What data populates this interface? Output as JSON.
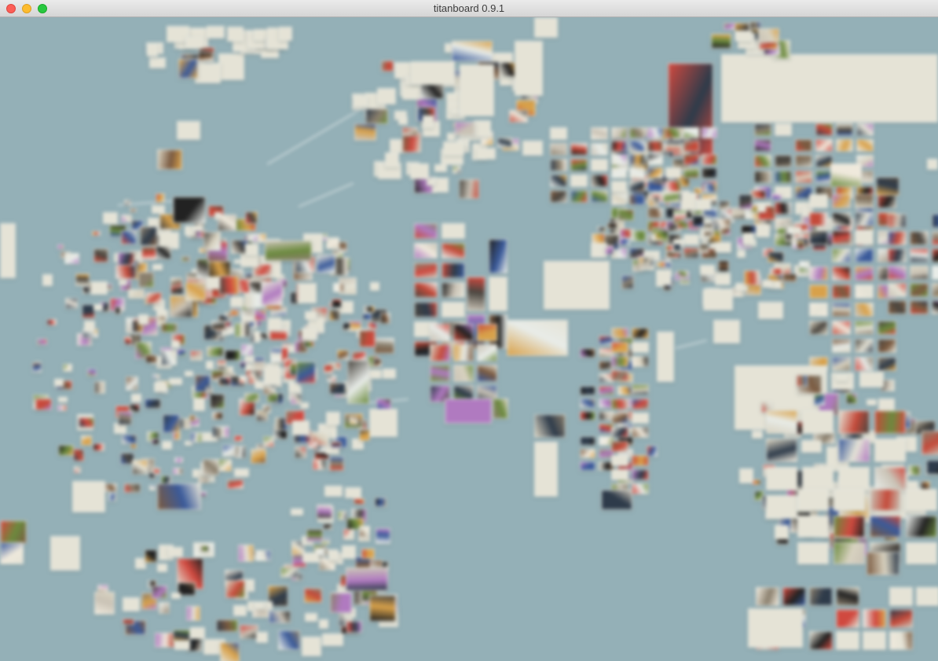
{
  "window": {
    "title": "titanboard 0.9.1"
  },
  "colors": {
    "canvas_background": "#94b0b7",
    "note_paper": "#e5e3d6",
    "image_palette": [
      "#e5e3d6",
      "#d8d2c0",
      "#8a7f6d",
      "#4a4640",
      "#2e3b4a",
      "#c44a3a",
      "#d8a14a",
      "#6b8a3e",
      "#3a5a9a",
      "#c9c2b5",
      "#e8ece8",
      "#7a5a40",
      "#222222",
      "#d0493f",
      "#b07ac0",
      "#efe9dc"
    ]
  }
}
